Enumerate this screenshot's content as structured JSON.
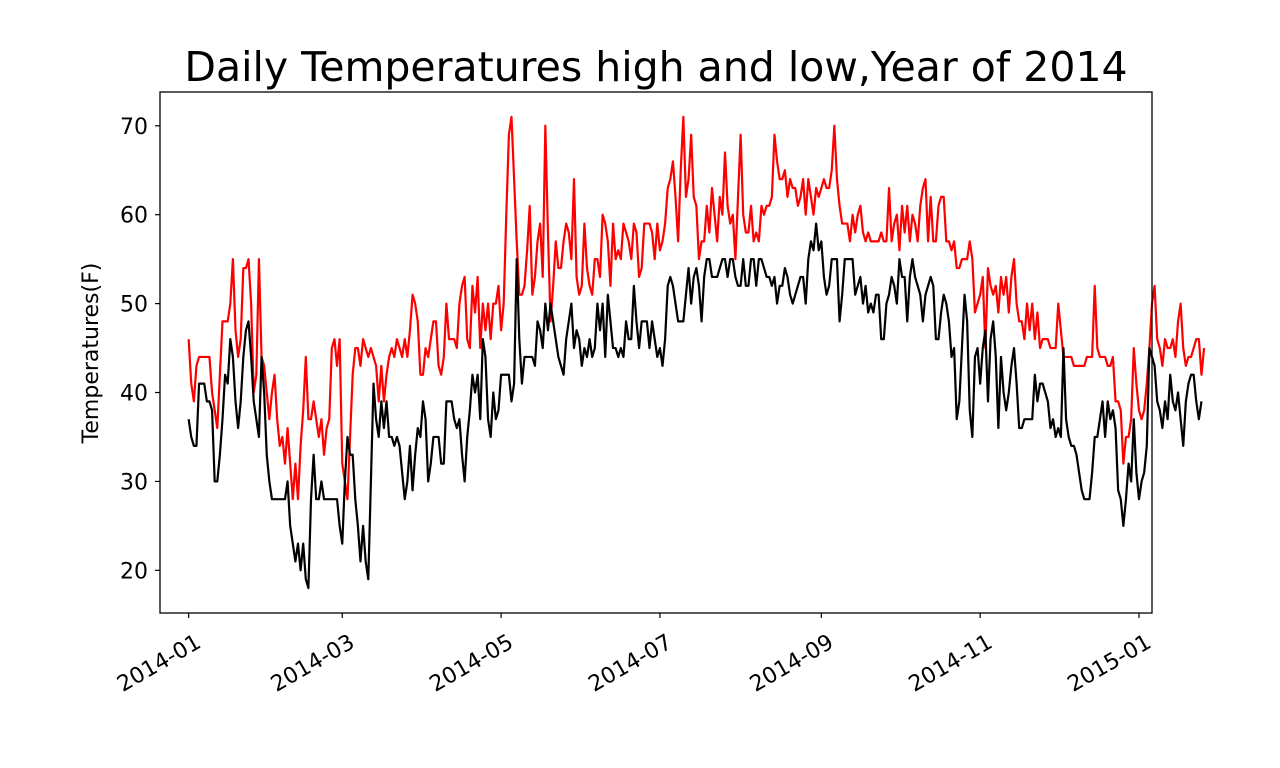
{
  "chart_data": {
    "type": "line",
    "title": "Daily Temperatures high and low,Year of 2014",
    "xlabel": "",
    "ylabel": "Temperatures(F)",
    "x_start": "2014-01-01",
    "x_ticks": [
      "2014-01",
      "2014-03",
      "2014-05",
      "2014-07",
      "2014-09",
      "2014-11",
      "2015-01"
    ],
    "y_ticks": [
      20,
      30,
      40,
      50,
      60,
      70
    ],
    "xlim": [
      "2013-12-21",
      "2015-01-06"
    ],
    "ylim": [
      15.2,
      73.8
    ],
    "grid": false,
    "legend": "none",
    "series": [
      {
        "color": "#ff0000",
        "values": [
          46,
          41,
          39,
          43,
          44,
          44,
          44,
          44,
          44,
          40,
          38,
          36,
          42,
          48,
          48,
          48,
          50,
          55,
          47,
          44,
          46,
          54,
          54,
          55,
          50,
          40,
          42,
          55,
          44,
          43,
          40,
          37,
          40,
          42,
          37,
          34,
          35,
          32,
          36,
          32,
          28,
          32,
          28,
          34,
          38,
          44,
          37,
          37,
          39,
          37,
          35,
          37,
          33,
          36,
          37,
          45,
          46,
          43,
          46,
          32,
          30,
          28,
          35,
          42,
          45,
          45,
          43,
          46,
          45,
          44,
          45,
          44,
          43,
          39,
          43,
          39,
          42,
          44,
          45,
          44,
          46,
          45,
          44,
          46,
          44,
          47,
          51,
          50,
          48,
          42,
          42,
          45,
          44,
          46,
          48,
          48,
          43,
          42,
          44,
          50,
          46,
          46,
          46,
          45,
          50,
          52,
          53,
          46,
          45,
          52,
          49,
          53,
          45,
          50,
          47,
          50,
          46,
          50,
          50,
          52,
          47,
          50,
          60,
          69,
          71,
          64,
          57,
          51,
          51,
          52,
          56,
          61,
          51,
          53,
          57,
          59,
          53,
          70,
          58,
          48,
          52,
          57,
          54,
          54,
          57,
          59,
          58,
          55,
          64,
          53,
          51,
          52,
          59,
          54,
          52,
          51,
          55,
          55,
          53,
          60,
          59,
          57,
          52,
          59,
          55,
          56,
          55,
          59,
          58,
          57,
          55,
          59,
          58,
          53,
          54,
          59,
          59,
          59,
          58,
          55,
          59,
          56,
          57,
          59,
          63,
          64,
          66,
          62,
          57,
          65,
          71,
          62,
          64,
          69,
          62,
          61,
          55,
          57,
          57,
          61,
          58,
          63,
          60,
          57,
          62,
          60,
          67,
          61,
          59,
          60,
          55,
          62,
          69,
          60,
          58,
          58,
          61,
          57,
          58,
          57,
          61,
          60,
          61,
          61,
          62,
          69,
          66,
          64,
          64,
          65,
          62,
          64,
          63,
          63,
          61,
          62,
          64,
          60,
          64,
          62,
          60,
          63,
          62,
          63,
          64,
          63,
          63,
          65,
          70,
          64,
          61,
          59,
          59,
          59,
          57,
          60,
          58,
          60,
          61,
          58,
          57,
          58,
          57,
          57,
          57,
          57,
          58,
          57,
          57,
          63,
          57,
          59,
          60,
          56,
          61,
          58,
          61,
          57,
          60,
          59,
          57,
          61,
          63,
          64,
          57,
          62,
          57,
          57,
          61,
          62,
          62,
          57,
          57,
          56,
          57,
          54,
          54,
          55,
          55,
          55,
          57,
          55,
          49,
          50,
          51,
          53,
          45,
          54,
          52,
          51,
          52,
          49,
          53,
          51,
          53,
          49,
          53,
          55,
          50,
          48,
          48,
          46,
          50,
          47,
          50,
          46,
          49,
          45,
          46,
          46,
          46,
          45,
          45,
          45,
          50,
          47,
          44,
          44,
          44,
          44,
          43,
          43,
          43,
          43,
          43,
          44,
          44,
          44,
          52,
          45,
          44,
          44,
          44,
          43,
          43,
          44,
          39,
          39,
          38,
          32,
          35,
          35,
          37,
          45,
          41,
          38,
          37,
          38,
          41,
          45,
          50,
          52,
          46,
          45,
          43,
          46,
          45,
          45,
          46,
          44,
          48,
          50,
          45,
          43,
          44,
          44,
          45,
          46,
          46,
          42,
          45
        ]
      },
      {
        "color": "#000000",
        "values": [
          37,
          35,
          34,
          34,
          41,
          41,
          41,
          39,
          39,
          38,
          30,
          30,
          33,
          37,
          42,
          41,
          46,
          44,
          39,
          36,
          39,
          44,
          47,
          48,
          44,
          39,
          37,
          35,
          44,
          40,
          33,
          30,
          28,
          28,
          28,
          28,
          28,
          28,
          30,
          25,
          23,
          21,
          23,
          20,
          23,
          19,
          18,
          28,
          33,
          28,
          28,
          30,
          28,
          28,
          28,
          28,
          28,
          28,
          25,
          23,
          30,
          35,
          33,
          33,
          28,
          25,
          21,
          25,
          21,
          19,
          30,
          41,
          37,
          35,
          39,
          36,
          39,
          35,
          35,
          34,
          35,
          34,
          31,
          28,
          30,
          34,
          29,
          33,
          36,
          35,
          39,
          37,
          30,
          32,
          35,
          35,
          35,
          32,
          32,
          39,
          39,
          39,
          37,
          36,
          37,
          33,
          30,
          35,
          38,
          42,
          40,
          42,
          37,
          46,
          44,
          37,
          35,
          40,
          37,
          38,
          42,
          42,
          42,
          42,
          39,
          41,
          55,
          46,
          41,
          44,
          44,
          44,
          44,
          43,
          48,
          47,
          45,
          50,
          47,
          50,
          48,
          46,
          44,
          43,
          42,
          46,
          48,
          50,
          45,
          47,
          46,
          43,
          45,
          44,
          46,
          44,
          45,
          50,
          47,
          50,
          44,
          51,
          48,
          45,
          45,
          44,
          45,
          44,
          48,
          46,
          46,
          52,
          48,
          45,
          48,
          48,
          48,
          45,
          48,
          46,
          44,
          45,
          43,
          46,
          52,
          53,
          52,
          50,
          48,
          48,
          48,
          51,
          54,
          50,
          53,
          54,
          52,
          48,
          53,
          55,
          55,
          53,
          53,
          53,
          54,
          55,
          55,
          53,
          55,
          55,
          53,
          52,
          52,
          55,
          52,
          52,
          55,
          55,
          52,
          55,
          55,
          54,
          53,
          53,
          52,
          53,
          50,
          52,
          52,
          54,
          53,
          51,
          50,
          51,
          52,
          53,
          53,
          50,
          55,
          57,
          56,
          59,
          56,
          57,
          53,
          51,
          52,
          55,
          55,
          55,
          48,
          51,
          55,
          55,
          55,
          55,
          51,
          52,
          53,
          50,
          52,
          49,
          50,
          49,
          51,
          51,
          46,
          46,
          50,
          51,
          53,
          52,
          50,
          55,
          53,
          53,
          48,
          53,
          55,
          53,
          52,
          51,
          48,
          51,
          52,
          53,
          52,
          46,
          46,
          49,
          51,
          50,
          48,
          44,
          45,
          37,
          39,
          45,
          51,
          48,
          38,
          35,
          44,
          45,
          41,
          45,
          47,
          39,
          46,
          48,
          44,
          36,
          44,
          40,
          38,
          40,
          43,
          45,
          41,
          36,
          36,
          37,
          37,
          37,
          37,
          42,
          39,
          41,
          41,
          40,
          39,
          36,
          37,
          35,
          36,
          35,
          45,
          37,
          35,
          34,
          34,
          33,
          31,
          29,
          28,
          28,
          28,
          31,
          35,
          35,
          37,
          39,
          35,
          39,
          37,
          38,
          36,
          29,
          28,
          25,
          28,
          32,
          30,
          37,
          31,
          28,
          30,
          31,
          34,
          45,
          44,
          43,
          39,
          38,
          36,
          39,
          37,
          42,
          39,
          38,
          40,
          37,
          34,
          39,
          41,
          42,
          42,
          39,
          37,
          39
        ]
      }
    ]
  }
}
